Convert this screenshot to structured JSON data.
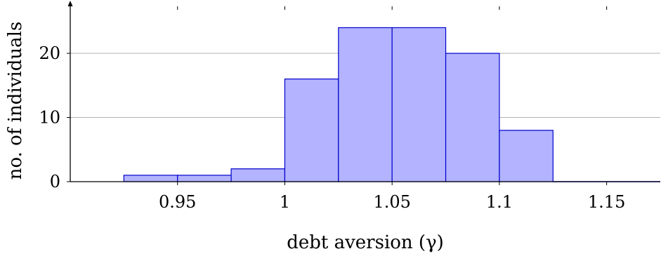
{
  "chart_data": {
    "type": "bar",
    "subtype": "histogram",
    "xlabel": "debt aversion (γ)",
    "ylabel": "no. of individuals",
    "bin_width": 0.025,
    "bins": [
      {
        "start": 0.925,
        "end": 0.95,
        "count": 1
      },
      {
        "start": 0.95,
        "end": 0.975,
        "count": 1
      },
      {
        "start": 0.975,
        "end": 1.0,
        "count": 2
      },
      {
        "start": 1.0,
        "end": 1.025,
        "count": 16
      },
      {
        "start": 1.025,
        "end": 1.05,
        "count": 24
      },
      {
        "start": 1.05,
        "end": 1.075,
        "count": 24
      },
      {
        "start": 1.075,
        "end": 1.1,
        "count": 20
      },
      {
        "start": 1.1,
        "end": 1.125,
        "count": 8
      },
      {
        "start": 1.125,
        "end": 1.15,
        "count": 0
      },
      {
        "start": 1.15,
        "end": 1.175,
        "count": 0
      }
    ],
    "x_ticks": [
      {
        "value": 0.95,
        "label": "0.95"
      },
      {
        "value": 1.0,
        "label": "1"
      },
      {
        "value": 1.05,
        "label": "1.05"
      },
      {
        "value": 1.1,
        "label": "1.1"
      },
      {
        "value": 1.15,
        "label": "1.15"
      }
    ],
    "y_ticks": [
      {
        "value": 0,
        "label": "0"
      },
      {
        "value": 10,
        "label": "10"
      },
      {
        "value": 20,
        "label": "20"
      }
    ],
    "xlim": [
      0.9,
      1.175
    ],
    "ylim": [
      0,
      27
    ],
    "grid": "horizontal",
    "colors": {
      "bar_fill": "#b3b3ff",
      "bar_stroke": "#0000cc",
      "grid": "#b3b3b3",
      "axis": "#000000"
    }
  }
}
